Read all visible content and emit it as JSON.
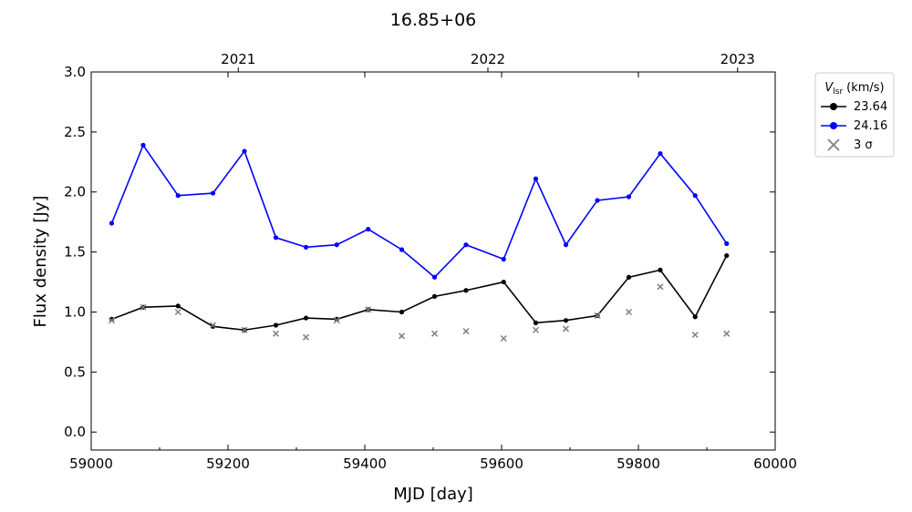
{
  "chart_data": {
    "type": "line",
    "title": "16.85+06",
    "xlabel": "MJD [day]",
    "ylabel": "Flux density [Jy]",
    "xlim": [
      59000,
      60000
    ],
    "ylim": [
      -0.15,
      3.0
    ],
    "x_ticks": [
      59000,
      59200,
      59400,
      59600,
      59800,
      60000
    ],
    "x_tick_labels": [
      "59000",
      "59200",
      "59400",
      "59600",
      "59800",
      "60000"
    ],
    "y_ticks": [
      0.0,
      0.5,
      1.0,
      1.5,
      2.0,
      2.5,
      3.0
    ],
    "y_tick_labels": [
      "0.0",
      "0.5",
      "1.0",
      "1.5",
      "2.0",
      "2.5",
      "3.0"
    ],
    "top_axis": {
      "ticks": [
        {
          "x": 59215,
          "label": "2021"
        },
        {
          "x": 59580,
          "label": "2022"
        },
        {
          "x": 59945,
          "label": "2023"
        }
      ]
    },
    "grid": false,
    "legend": {
      "placement": "outside-right",
      "title_main": "V",
      "title_sub": "lsr",
      "title_unit": "(km/s)",
      "entries": [
        "23.64",
        "24.16",
        "3 σ"
      ]
    },
    "colors": {
      "s1": "#000000",
      "s2": "#0000ff",
      "sigma": "#808080"
    },
    "series": [
      {
        "name": "23.64",
        "x": [
          59030,
          59076,
          59127,
          59178,
          59224,
          59270,
          59314,
          59359,
          59405,
          59454,
          59502,
          59548,
          59603,
          59650,
          59694,
          59740,
          59786,
          59832,
          59883,
          59929
        ],
        "values": [
          0.94,
          1.04,
          1.05,
          0.88,
          0.85,
          0.89,
          0.95,
          0.94,
          1.02,
          1.0,
          1.13,
          1.18,
          1.25,
          0.91,
          0.93,
          0.97,
          1.29,
          1.35,
          0.96,
          1.47
        ]
      },
      {
        "name": "24.16",
        "x": [
          59030,
          59076,
          59127,
          59178,
          59224,
          59270,
          59314,
          59359,
          59405,
          59454,
          59502,
          59548,
          59603,
          59650,
          59694,
          59740,
          59786,
          59832,
          59883,
          59929
        ],
        "values": [
          1.74,
          2.39,
          1.97,
          1.99,
          2.34,
          1.62,
          1.54,
          1.56,
          1.69,
          1.52,
          1.29,
          1.56,
          1.44,
          2.11,
          1.56,
          1.93,
          1.96,
          2.32,
          1.97,
          1.57
        ]
      },
      {
        "name": "3 σ",
        "x": [
          59030,
          59076,
          59127,
          59178,
          59224,
          59270,
          59314,
          59359,
          59405,
          59454,
          59502,
          59548,
          59603,
          59650,
          59694,
          59740,
          59786,
          59832,
          59883,
          59929
        ],
        "values": [
          0.93,
          1.04,
          1.0,
          0.89,
          0.85,
          0.82,
          0.79,
          0.93,
          1.02,
          0.8,
          0.82,
          0.84,
          0.78,
          0.85,
          0.86,
          0.97,
          1.0,
          1.21,
          0.81,
          0.82
        ]
      }
    ]
  }
}
